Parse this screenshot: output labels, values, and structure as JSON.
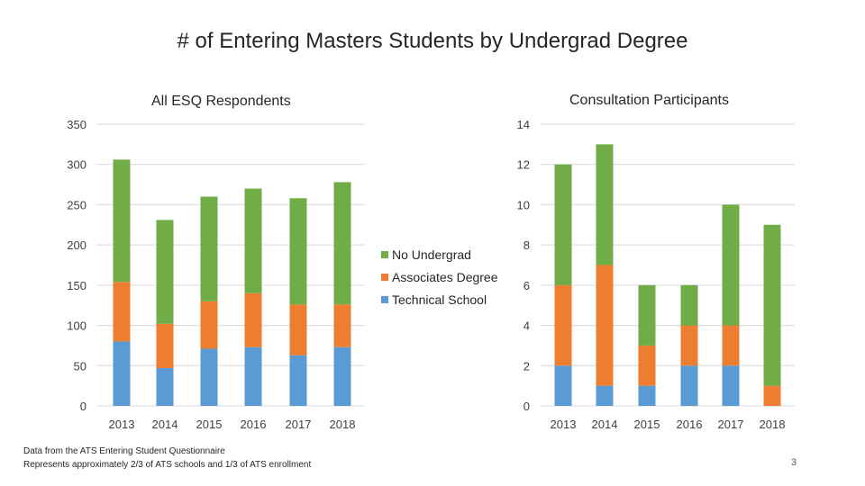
{
  "page": {
    "title": "# of Entering Masters Students by Undergrad Degree",
    "footnote_line1": "Data from the ATS Entering Student Questionnaire",
    "footnote_line2": "Represents approximately 2/3 of ATS schools and 1/3 of ATS enrollment",
    "page_number": "3"
  },
  "legend": [
    {
      "label": "No Undergrad",
      "color": "#70ad47"
    },
    {
      "label": "Associates Degree",
      "color": "#ed7d31"
    },
    {
      "label": "Technical School",
      "color": "#5b9bd5"
    }
  ],
  "chart_data": [
    {
      "type": "bar",
      "stacked": true,
      "title": "All ESQ Respondents",
      "categories": [
        "2013",
        "2014",
        "2015",
        "2016",
        "2017",
        "2018"
      ],
      "ylim": [
        0,
        350
      ],
      "yticks": [
        "0",
        "50",
        "100",
        "150",
        "200",
        "250",
        "300",
        "350"
      ],
      "grid": true,
      "series": [
        {
          "name": "Technical School",
          "color": "#5b9bd5",
          "values": [
            80,
            47,
            71,
            73,
            63,
            73
          ]
        },
        {
          "name": "Associates Degree",
          "color": "#ed7d31",
          "values": [
            74,
            55,
            59,
            67,
            63,
            53
          ]
        },
        {
          "name": "No Undergrad",
          "color": "#70ad47",
          "values": [
            152,
            129,
            130,
            130,
            132,
            152
          ]
        }
      ]
    },
    {
      "type": "bar",
      "stacked": true,
      "title": "Consultation Participants",
      "categories": [
        "2013",
        "2014",
        "2015",
        "2016",
        "2017",
        "2018"
      ],
      "ylim": [
        0,
        14
      ],
      "yticks": [
        "0",
        "2",
        "4",
        "6",
        "8",
        "10",
        "12",
        "14"
      ],
      "grid": true,
      "series": [
        {
          "name": "Technical School",
          "color": "#5b9bd5",
          "values": [
            2,
            1,
            1,
            2,
            2,
            0
          ]
        },
        {
          "name": "Associates Degree",
          "color": "#ed7d31",
          "values": [
            4,
            6,
            2,
            2,
            2,
            1
          ]
        },
        {
          "name": "No Undergrad",
          "color": "#70ad47",
          "values": [
            6,
            6,
            3,
            2,
            6,
            8
          ]
        }
      ]
    }
  ]
}
